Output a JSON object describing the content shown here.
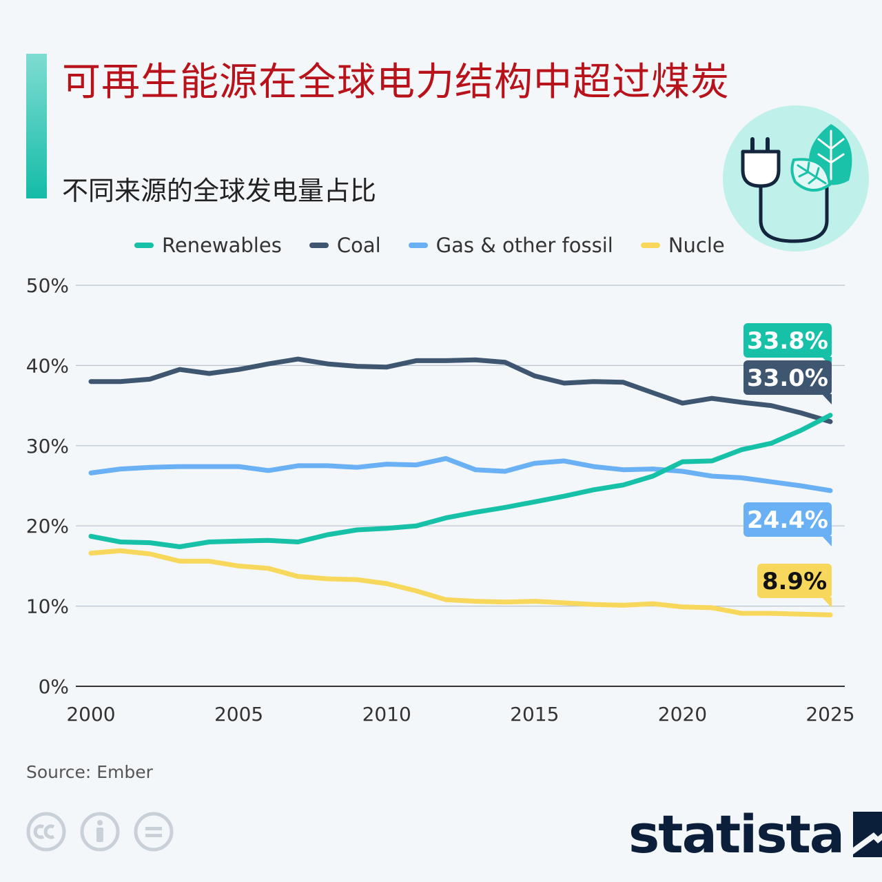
{
  "header": {
    "title": "可再生能源在全球电力结构中超过煤炭",
    "subtitle": "不同来源的全球发电量占比"
  },
  "icon": {
    "name": "plug-leaf-icon",
    "bg_color": "#bff0ea"
  },
  "footer": {
    "source": "Source: Ember",
    "license_icons": [
      "cc-icon",
      "attribution-icon",
      "no-derivatives-icon"
    ],
    "brand": "statista"
  },
  "chart_data": {
    "type": "line",
    "x": [
      2000,
      2001,
      2002,
      2003,
      2004,
      2005,
      2006,
      2007,
      2008,
      2009,
      2010,
      2011,
      2012,
      2013,
      2014,
      2015,
      2016,
      2017,
      2018,
      2019,
      2020,
      2021,
      2022,
      2023,
      2024,
      2025
    ],
    "series": [
      {
        "name": "Renewables",
        "color": "#17c1a8",
        "end_label": "33.8%",
        "values": [
          18.7,
          18.0,
          17.9,
          17.4,
          18.0,
          18.1,
          18.2,
          18.0,
          18.9,
          19.5,
          19.7,
          20.0,
          21.0,
          21.7,
          22.3,
          23.0,
          23.7,
          24.5,
          25.1,
          26.2,
          28.0,
          28.1,
          29.5,
          30.3,
          31.9,
          33.8
        ]
      },
      {
        "name": "Coal",
        "color": "#3f5670",
        "end_label": "33.0%",
        "values": [
          38.0,
          38.0,
          38.3,
          39.5,
          39.0,
          39.5,
          40.2,
          40.8,
          40.2,
          39.9,
          39.8,
          40.6,
          40.6,
          40.7,
          40.4,
          38.7,
          37.8,
          38.0,
          37.9,
          36.6,
          35.3,
          35.9,
          35.4,
          35.0,
          34.1,
          33.0
        ]
      },
      {
        "name": "Gas & other fossil",
        "color": "#6ab0f5",
        "end_label": "24.4%",
        "values": [
          26.6,
          27.1,
          27.3,
          27.4,
          27.4,
          27.4,
          26.9,
          27.5,
          27.5,
          27.3,
          27.7,
          27.6,
          28.4,
          27.0,
          26.8,
          27.8,
          28.1,
          27.4,
          27.0,
          27.1,
          26.8,
          26.2,
          26.0,
          25.5,
          25.0,
          24.4
        ]
      },
      {
        "name": "Nucle",
        "color": "#f7d85c",
        "end_label": "8.9%",
        "values": [
          16.6,
          16.9,
          16.5,
          15.6,
          15.6,
          15.0,
          14.7,
          13.7,
          13.4,
          13.3,
          12.8,
          11.9,
          10.8,
          10.6,
          10.5,
          10.6,
          10.4,
          10.2,
          10.1,
          10.3,
          9.9,
          9.8,
          9.1,
          9.1,
          9.0,
          8.9
        ]
      }
    ],
    "y_ticks": [
      "0%",
      "10%",
      "20%",
      "30%",
      "40%",
      "50%"
    ],
    "x_ticks": [
      "2000",
      "2005",
      "2010",
      "2015",
      "2020",
      "2025"
    ],
    "xlim": [
      2000,
      2025
    ],
    "ylim": [
      0,
      50
    ],
    "grid": true,
    "legend_position": "top"
  }
}
